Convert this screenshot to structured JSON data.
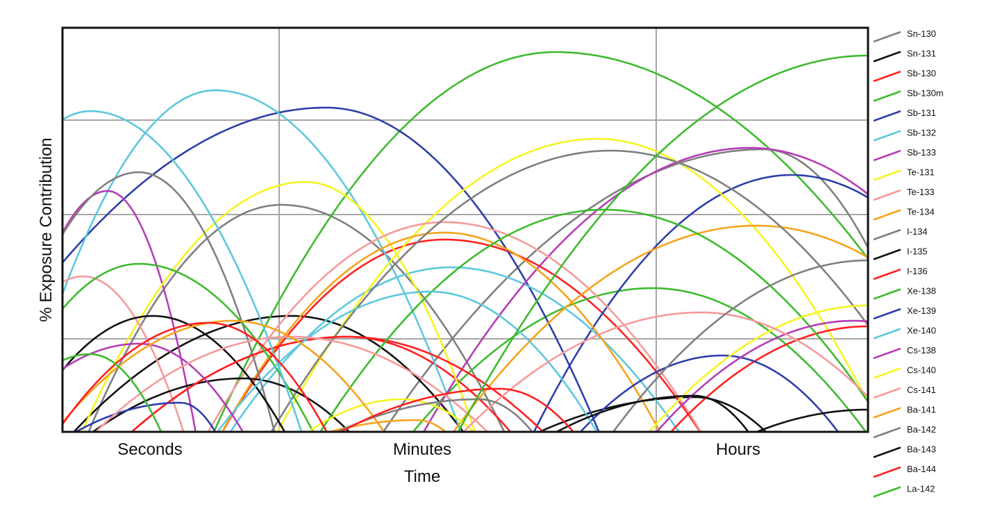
{
  "chart_data": {
    "type": "line",
    "xlabel": "Time",
    "ylabel": "% Exposure Contribution",
    "xticks": [
      "Seconds",
      "Minutes",
      "Hours"
    ],
    "grid": true,
    "legend_position": "right",
    "series": [
      {
        "name": "Sn-130",
        "color": "#7f7f7f"
      },
      {
        "name": "Sn-131",
        "color": "#111111"
      },
      {
        "name": "Sb-130",
        "color": "#ff2020"
      },
      {
        "name": "Sb-130m",
        "color": "#3dbb2e"
      },
      {
        "name": "Sb-131",
        "color": "#2e3ea8"
      },
      {
        "name": "Sb-132",
        "color": "#5cc8dd"
      },
      {
        "name": "Sb-133",
        "color": "#b53db5"
      },
      {
        "name": "Te-131",
        "color": "#f5f520"
      },
      {
        "name": "Te-133",
        "color": "#f59a9a"
      },
      {
        "name": "Te-134",
        "color": "#f5a31a"
      },
      {
        "name": "I-134",
        "color": "#7f7f7f"
      },
      {
        "name": "I-135",
        "color": "#111111"
      },
      {
        "name": "I-136",
        "color": "#ff2020"
      },
      {
        "name": "Xe-138",
        "color": "#3dbb2e"
      },
      {
        "name": "Xe-139",
        "color": "#2e3ea8"
      },
      {
        "name": "Xe-140",
        "color": "#5cc8dd"
      },
      {
        "name": "Cs-138",
        "color": "#b53db5"
      },
      {
        "name": "Cs-140",
        "color": "#f5f520"
      },
      {
        "name": "Cs-141",
        "color": "#f59a9a"
      },
      {
        "name": "Ba-141",
        "color": "#f5a31a"
      },
      {
        "name": "Ba-142",
        "color": "#7f7f7f"
      },
      {
        "name": "Ba-143",
        "color": "#111111"
      },
      {
        "name": "Ba-144",
        "color": "#ff2020"
      },
      {
        "name": "La-142",
        "color": "#3dbb2e"
      }
    ]
  }
}
